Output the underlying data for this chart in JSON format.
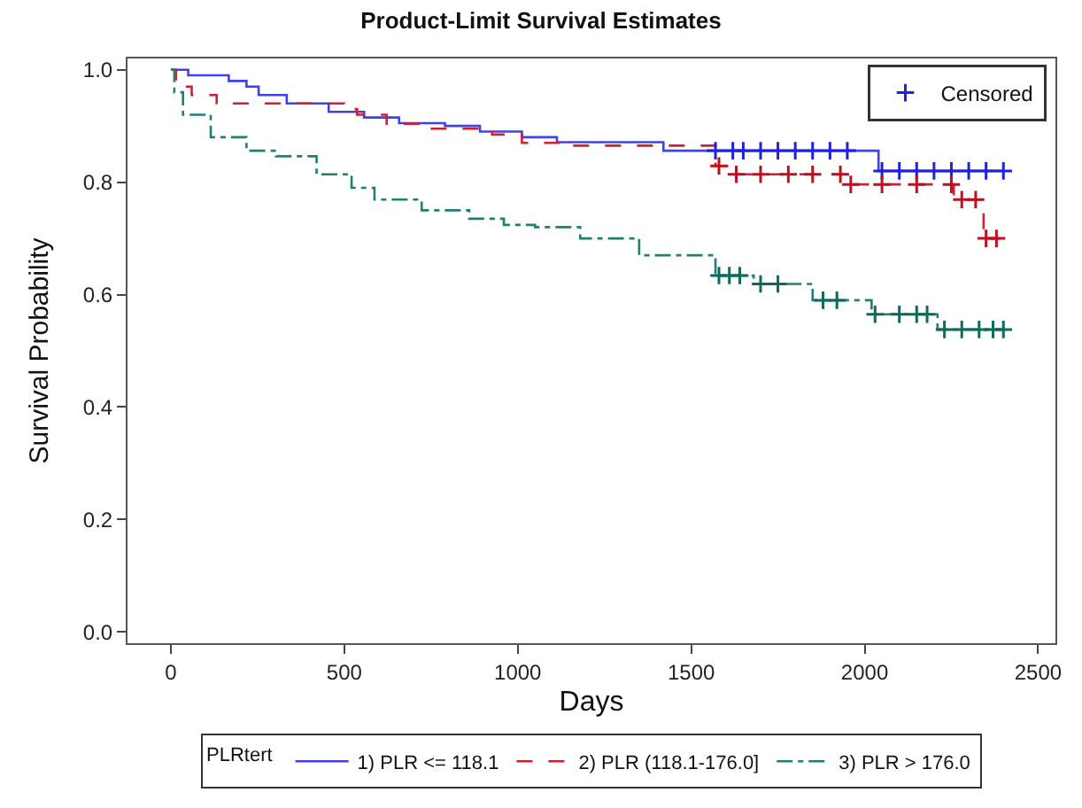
{
  "chart_data": {
    "type": "step",
    "title": "Product-Limit Survival Estimates",
    "xlabel": "Days",
    "ylabel": "Survival Probability",
    "legend_title": "PLRtert",
    "legend": "bottom",
    "xlim": [
      -125,
      2550
    ],
    "xticks": [
      0,
      500,
      1000,
      1500,
      2000,
      2500
    ],
    "ylim": [
      -0.02,
      1.02
    ],
    "yticks": [
      {
        "value": 0,
        "label": "0.0"
      },
      0.2,
      0.4,
      0.6,
      0.8,
      {
        "value": 1,
        "label": "1.0"
      }
    ],
    "series": [
      {
        "name": "1) PLR <= 118.1",
        "color": "#4040f0",
        "line_style": "solid",
        "x": [
          0,
          50,
          167,
          218,
          253,
          334,
          455,
          557,
          658,
          790,
          891,
          1012,
          1113,
          1420,
          2040,
          2400
        ],
        "values": [
          1.0,
          0.99,
          0.98,
          0.97,
          0.955,
          0.94,
          0.925,
          0.915,
          0.905,
          0.9,
          0.89,
          0.88,
          0.871,
          0.856,
          0.82,
          0.82
        ]
      },
      {
        "name": "2) PLR (118.1-176.0]",
        "color": "#d02030",
        "line_style": "dashed",
        "x": [
          0,
          15,
          60,
          132,
          500,
          537,
          622,
          747,
          926,
          1012,
          1130,
          1570,
          1620,
          1950,
          2257,
          2343,
          2390
        ],
        "values": [
          1.0,
          0.97,
          0.955,
          0.94,
          0.93,
          0.92,
          0.904,
          0.895,
          0.885,
          0.87,
          0.865,
          0.829,
          0.814,
          0.796,
          0.769,
          0.7,
          0.7
        ]
      },
      {
        "name": "3) PLR > 176.0",
        "color": "#1e8070",
        "line_style": "dashdot",
        "x": [
          0,
          10,
          35,
          115,
          218,
          303,
          420,
          521,
          587,
          723,
          860,
          960,
          1050,
          1180,
          1350,
          1570,
          1680,
          1850,
          2020,
          2210,
          2400
        ],
        "values": [
          1.0,
          0.96,
          0.92,
          0.88,
          0.856,
          0.846,
          0.814,
          0.79,
          0.769,
          0.75,
          0.735,
          0.724,
          0.72,
          0.7,
          0.67,
          0.634,
          0.619,
          0.59,
          0.565,
          0.538,
          0.538
        ]
      },
      {
        "name": "Censored",
        "type": "scatter",
        "marker": "cross",
        "x": [
          1570,
          1620,
          1650,
          1700,
          1750,
          1800,
          1850,
          1900,
          1950,
          2050,
          2100,
          2150,
          2200,
          2250,
          2300,
          2350,
          2400,
          1580,
          1630,
          1700,
          1780,
          1850,
          1930,
          1960,
          2050,
          2150,
          2250,
          2280,
          2320,
          2350,
          2380,
          1580,
          1610,
          1640,
          1700,
          1750,
          1880,
          1920,
          2030,
          2100,
          2150,
          2180,
          2230,
          2280,
          2330,
          2370,
          2400
        ],
        "values": [
          0.856,
          0.856,
          0.856,
          0.856,
          0.856,
          0.856,
          0.856,
          0.856,
          0.856,
          0.82,
          0.82,
          0.82,
          0.82,
          0.82,
          0.82,
          0.82,
          0.82,
          0.829,
          0.814,
          0.814,
          0.814,
          0.814,
          0.814,
          0.796,
          0.796,
          0.796,
          0.796,
          0.769,
          0.769,
          0.7,
          0.7,
          0.634,
          0.634,
          0.634,
          0.619,
          0.619,
          0.59,
          0.59,
          0.565,
          0.565,
          0.565,
          0.565,
          0.538,
          0.538,
          0.538,
          0.538,
          0.538
        ],
        "colors": [
          "#2020e0",
          "#2020e0",
          "#2020e0",
          "#2020e0",
          "#2020e0",
          "#2020e0",
          "#2020e0",
          "#2020e0",
          "#2020e0",
          "#2020e0",
          "#2020e0",
          "#2020e0",
          "#2020e0",
          "#2020e0",
          "#2020e0",
          "#2020e0",
          "#2020e0",
          "#c01020",
          "#c01020",
          "#c01020",
          "#c01020",
          "#c01020",
          "#c01020",
          "#c01020",
          "#c01020",
          "#c01020",
          "#c01020",
          "#c01020",
          "#c01020",
          "#c01020",
          "#c01020",
          "#0e6a5a",
          "#0e6a5a",
          "#0e6a5a",
          "#0e6a5a",
          "#0e6a5a",
          "#0e6a5a",
          "#0e6a5a",
          "#0e6a5a",
          "#0e6a5a",
          "#0e6a5a",
          "#0e6a5a",
          "#0e6a5a",
          "#0e6a5a",
          "#0e6a5a",
          "#0e6a5a",
          "#0e6a5a"
        ]
      }
    ]
  }
}
